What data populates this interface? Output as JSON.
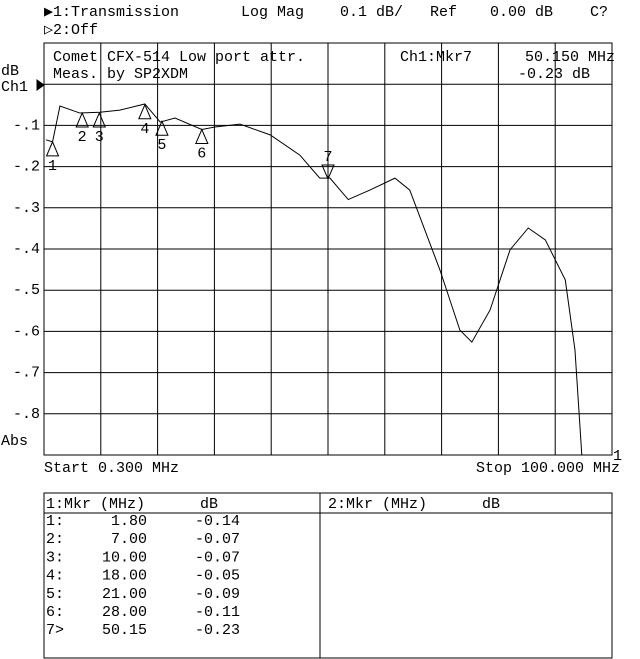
{
  "header": {
    "ch1": "▶1:Transmission",
    "format": "Log Mag",
    "scale": "0.1 dB/",
    "ref_label": "Ref",
    "ref_value": "0.00 dB",
    "cal": "C?",
    "ch2": "▷2:Off"
  },
  "chart_data": {
    "type": "line",
    "title": "Comet CFX-514 Low port attr.",
    "subtitle": "Meas. by SP2XDM",
    "active_marker": "Ch1:Mkr7",
    "active_freq": "50.150 MHz",
    "active_value": "-0.23 dB",
    "y_unit": "dB",
    "channel_label": "Ch1",
    "abs_label": "Abs",
    "start_label": "Start 0.300 MHz",
    "stop_label": "Stop 100.000 MHz",
    "end_label": "1",
    "xlim": [
      0.3,
      100
    ],
    "ylim": [
      -0.9,
      0.1
    ],
    "yticks": [
      {
        "value": -0.1,
        "label": "-.1"
      },
      {
        "value": -0.2,
        "label": "-.2"
      },
      {
        "value": -0.3,
        "label": "-.3"
      },
      {
        "value": -0.4,
        "label": "-.4"
      },
      {
        "value": -0.5,
        "label": "-.5"
      },
      {
        "value": -0.6,
        "label": "-.6"
      },
      {
        "value": -0.7,
        "label": "-.7"
      },
      {
        "value": -0.8,
        "label": "-.8"
      }
    ],
    "color": "#000000",
    "x": [
      0.65,
      1.8,
      3.1,
      6.6,
      10.1,
      13.6,
      18,
      20.7,
      23.3,
      28,
      30.3,
      34.7,
      40,
      45.2,
      48.7,
      50.5,
      53.7,
      57.5,
      61.9,
      64.5,
      69.8,
      73.3,
      75.4,
      78.6,
      82.1,
      85.3,
      88.3,
      91.8,
      93.5,
      94.7,
      100
    ],
    "values": [
      -0.135,
      -0.14,
      -0.053,
      -0.07,
      -0.068,
      -0.063,
      -0.048,
      -0.092,
      -0.082,
      -0.11,
      -0.104,
      -0.097,
      -0.123,
      -0.172,
      -0.228,
      -0.228,
      -0.28,
      -0.257,
      -0.228,
      -0.257,
      -0.451,
      -0.597,
      -0.626,
      -0.548,
      -0.402,
      -0.349,
      -0.378,
      -0.475,
      -0.645,
      -0.9,
      -0.9
    ],
    "markers": {
      "names": [
        "1",
        "2",
        "3",
        "4",
        "5",
        "6",
        "7"
      ],
      "row_labels": [
        "1:",
        "2:",
        "3:",
        "4:",
        "5:",
        "6:",
        "7>"
      ],
      "x": [
        1.8,
        7,
        10,
        18,
        21,
        28,
        50.15
      ],
      "values": [
        -0.14,
        -0.07,
        -0.07,
        -0.05,
        -0.09,
        -0.11,
        -0.23
      ],
      "x_labels": [
        "1.80",
        "7.00",
        "10.00",
        "18.00",
        "21.00",
        "28.00",
        "50.15"
      ],
      "value_labels": [
        "-0.14",
        "-0.07",
        "-0.07",
        "-0.05",
        "-0.09",
        "-0.11",
        "-0.23"
      ]
    }
  },
  "table": {
    "ch1_header": "1:Mkr (MHz)",
    "ch1_unit": "dB",
    "ch2_header": "2:Mkr (MHz)",
    "ch2_unit": "dB"
  }
}
